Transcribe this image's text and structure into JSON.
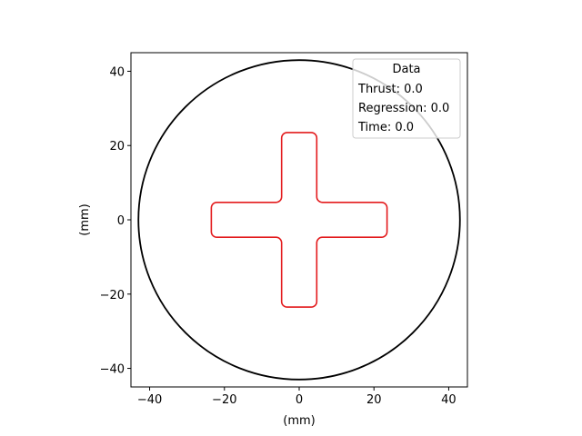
{
  "chart_data": {
    "type": "line",
    "xlabel": "(mm)",
    "ylabel": "(mm)",
    "xlim": [
      -45,
      45
    ],
    "ylim": [
      -45,
      45
    ],
    "xticks": [
      -40,
      -20,
      0,
      20,
      40
    ],
    "yticks": [
      -40,
      -20,
      0,
      20,
      40
    ],
    "xtick_labels": [
      "−40",
      "−20",
      "0",
      "20",
      "40"
    ],
    "ytick_labels": [
      "−40",
      "−20",
      "0",
      "20",
      "40"
    ],
    "grid": false,
    "series": [
      {
        "shape": "circle",
        "color": "#000000",
        "center": [
          0,
          0
        ],
        "radius": 43
      },
      {
        "shape": "cross",
        "color": "#e31a1c",
        "arm_half_width": 4.7,
        "arm_half_length": 23.5,
        "corner_radius": 1.5
      }
    ],
    "legend": {
      "placement": "top-right",
      "title": "Data",
      "entries": [
        "Thrust: 0.0",
        "Regression: 0.0",
        "Time: 0.0"
      ]
    }
  }
}
